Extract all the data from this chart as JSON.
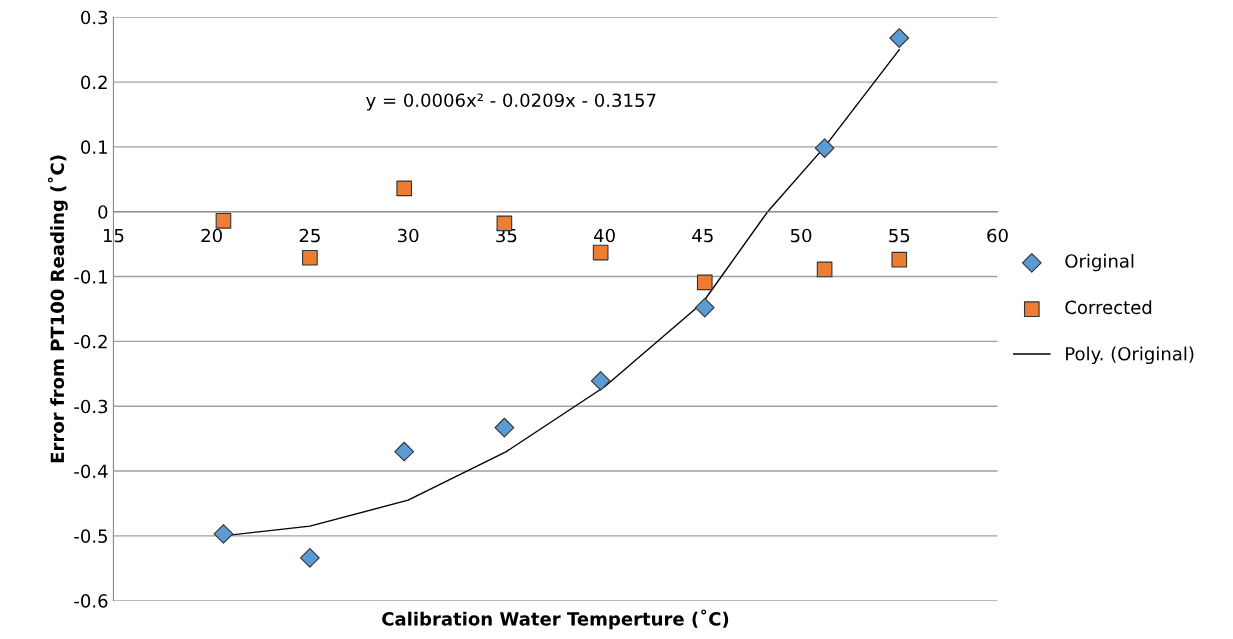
{
  "chart_data": {
    "type": "scatter",
    "xlabel": "Calibration Water Temperture (˚C)",
    "ylabel": "Error from PT100 Reading (˚C)",
    "annotations": [
      "y = 0.0006x² - 0.0209x - 0.3157"
    ],
    "series": [
      {
        "name": "Original",
        "marker": "diamond",
        "color": "#5b9bd5",
        "x": [
          20.6,
          25,
          29.8,
          34.9,
          39.8,
          45.1,
          51.2,
          55
        ],
        "values": [
          -0.497,
          -0.534,
          -0.37,
          -0.333,
          -0.261,
          -0.148,
          0.098,
          0.268
        ]
      },
      {
        "name": "Corrected",
        "marker": "square",
        "color": "#ed7d31",
        "x": [
          20.6,
          25,
          29.8,
          34.9,
          39.8,
          45.1,
          51.2,
          55
        ],
        "values": [
          -0.014,
          -0.071,
          0.036,
          -0.018,
          -0.063,
          -0.109,
          -0.089,
          -0.074
        ]
      },
      {
        "name": "Poly. (Original)",
        "type": "line",
        "marker": "none",
        "line_style": "solid",
        "color": "#000000",
        "x": [
          20.6,
          25,
          30,
          35,
          40,
          45,
          48.3,
          51.2,
          55
        ],
        "values": [
          -0.5,
          -0.485,
          -0.445,
          -0.37,
          -0.27,
          -0.14,
          0.0,
          0.1,
          0.25
        ]
      }
    ],
    "xlim": [
      15,
      60
    ],
    "xticks": [
      15,
      20,
      25,
      30,
      35,
      40,
      45,
      50,
      55,
      60
    ],
    "ylim": [
      -0.6,
      0.3
    ],
    "yticks": [
      -0.6,
      -0.5,
      -0.4,
      -0.3,
      -0.2,
      -0.1,
      0,
      0.1,
      0.2,
      0.3
    ],
    "grid": "y",
    "legend": "right"
  }
}
